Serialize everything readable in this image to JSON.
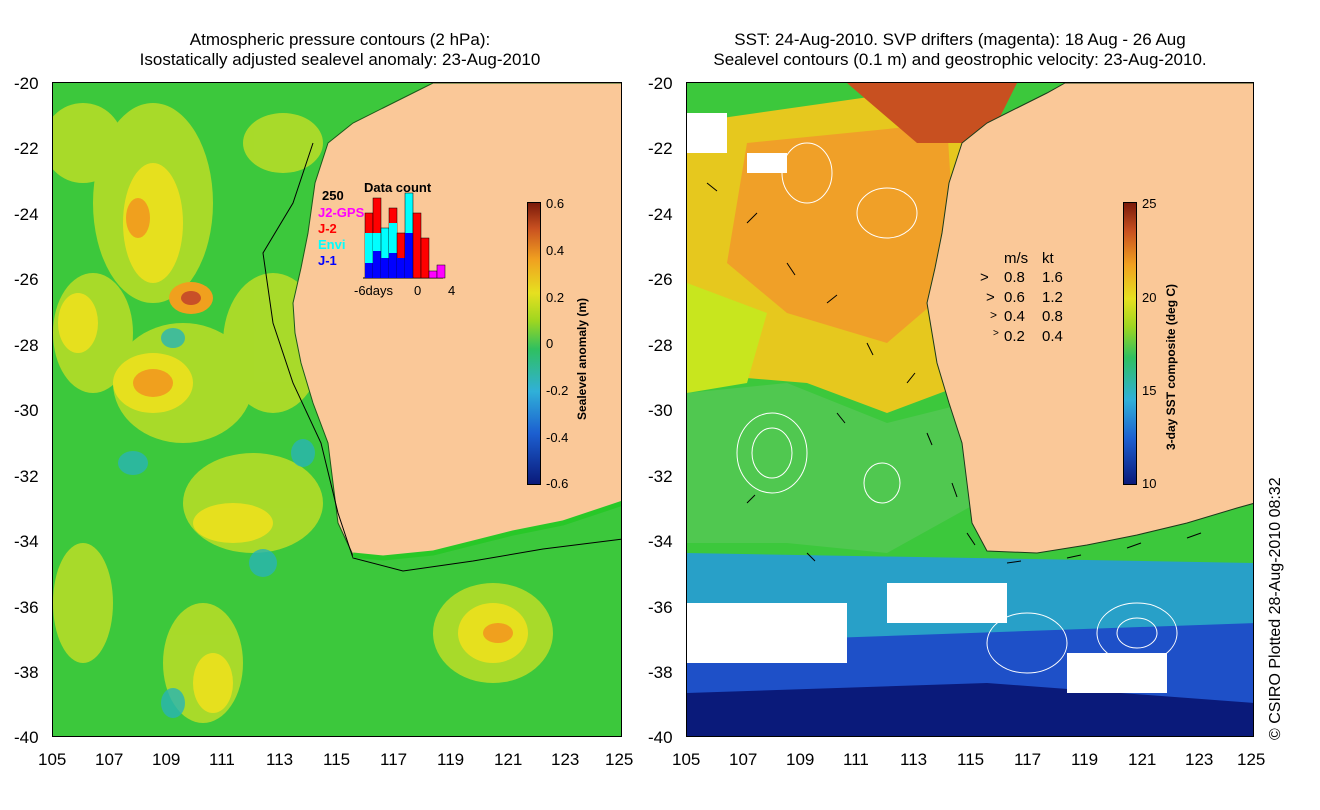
{
  "left_panel": {
    "title_line1": "Atmospheric pressure contours (2 hPa):",
    "title_line2": "Isostatically adjusted sealevel anomaly: 23-Aug-2010",
    "y_ticks": [
      "-20",
      "-22",
      "-24",
      "-26",
      "-28",
      "-30",
      "-32",
      "-34",
      "-36",
      "-38",
      "-40"
    ],
    "x_ticks": [
      "105",
      "107",
      "109",
      "111",
      "113",
      "115",
      "117",
      "119",
      "121",
      "123",
      "125"
    ],
    "colorbar": {
      "title": "Sealevel anomaly (m)",
      "ticks": [
        "0.6",
        "0.4",
        "0.2",
        "0",
        "-0.2",
        "-0.4",
        "-0.6"
      ]
    },
    "data_count": {
      "title": "Data count",
      "max_label": "250",
      "legend": [
        {
          "label": "J2-GPS",
          "color": "#ff00ff"
        },
        {
          "label": "J-2",
          "color": "#ff0000"
        },
        {
          "label": "Envi",
          "color": "#00ffff"
        },
        {
          "label": "J-1",
          "color": "#0000ff"
        }
      ],
      "x_labels": [
        "-6days",
        "0",
        "4"
      ]
    }
  },
  "right_panel": {
    "title_line1": "SST: 24-Aug-2010. SVP drifters (magenta): 18 Aug - 26 Aug",
    "title_line2": "Sealevel contours (0.1 m) and geostrophic velocity: 23-Aug-2010.",
    "y_ticks": [
      "-20",
      "-22",
      "-24",
      "-26",
      "-28",
      "-30",
      "-32",
      "-34",
      "-36",
      "-38",
      "-40"
    ],
    "x_ticks": [
      "105",
      "107",
      "109",
      "111",
      "113",
      "115",
      "117",
      "119",
      "121",
      "123",
      "125"
    ],
    "colorbar": {
      "title": "3-day SST composite (deg C)",
      "ticks": [
        "25",
        "20",
        "15",
        "10"
      ]
    },
    "velocity_legend": {
      "header_ms": "m/s",
      "header_kt": "kt",
      "rows": [
        {
          "ms": "0.8",
          "kt": "1.6"
        },
        {
          "ms": "0.6",
          "kt": "1.2"
        },
        {
          "ms": "0.4",
          "kt": "0.8"
        },
        {
          "ms": "0.2",
          "kt": "0.4"
        }
      ]
    }
  },
  "copyright": "© CSIRO Plotted 28-Aug-2010 08:32",
  "colors": {
    "land": "#fac898",
    "ocean_green": "#3cc83c",
    "ocean_yellow": "#c8e61e",
    "cold_blue": "#1e50c8",
    "magenta": "#ff00ff"
  }
}
